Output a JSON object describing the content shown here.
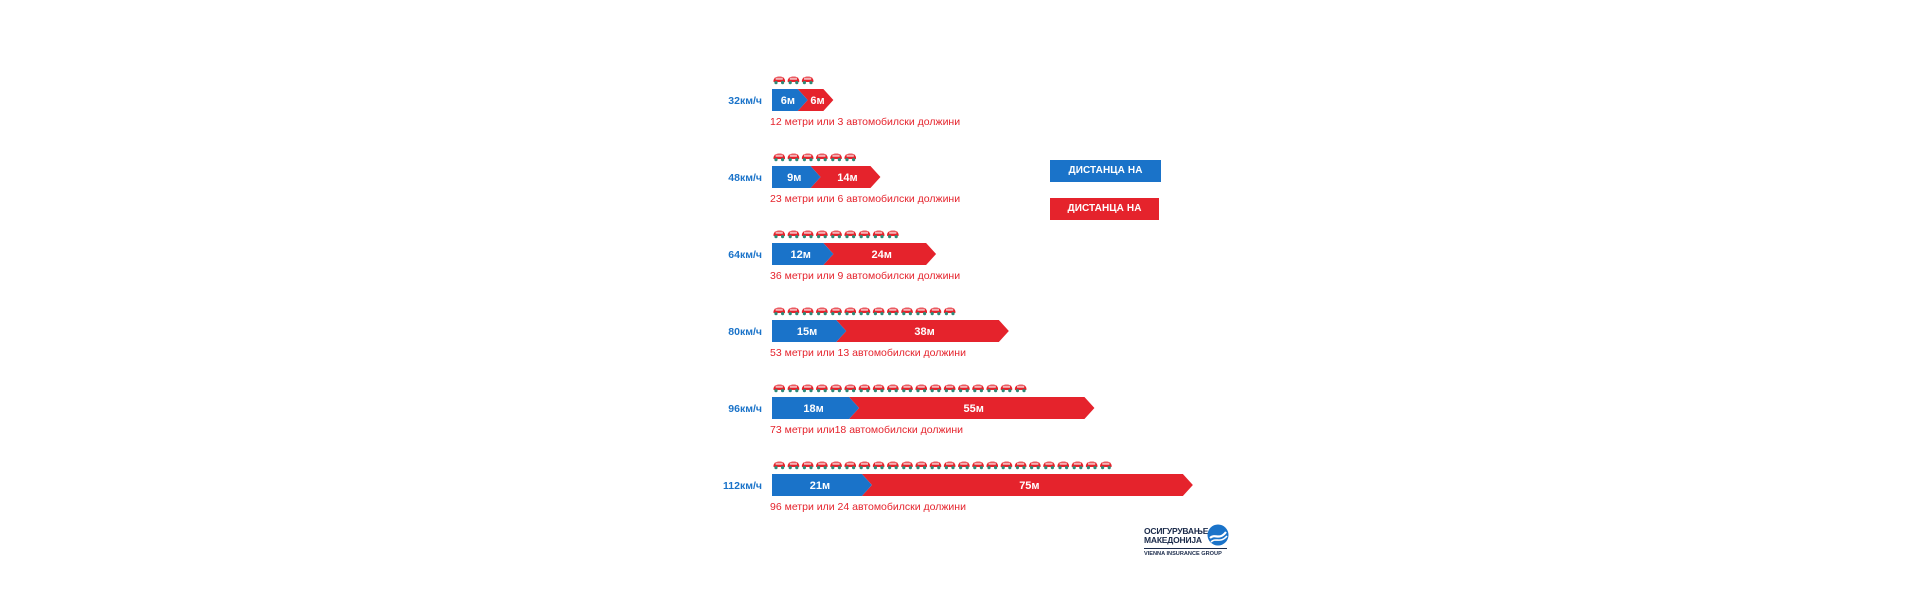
{
  "colors": {
    "thinking": "#1a73c9",
    "braking": "#e5232c",
    "car_red": "#e5232c",
    "car_teal": "#2e8a78",
    "speed_text": "#1a73c9",
    "note_text": "#e5232c"
  },
  "legend": {
    "thinking_label": "ДИСТАНЦА НА МИСЛЕЊЕ",
    "braking_label": "ДИСТАНЦА НА КОЧЕЊЕ"
  },
  "logo": {
    "line1": "ОСИГУРУВАЊЕ",
    "line2": "МАКЕДОНИЈА",
    "line3": "VIENNA INSURANCE GROUP"
  },
  "chart_data": {
    "type": "bar",
    "stacked": true,
    "orientation": "horizontal",
    "categories": [
      "32км/ч",
      "48км/ч",
      "64км/ч",
      "80км/ч",
      "96км/ч",
      "112км/ч"
    ],
    "series": [
      {
        "name": "ДИСТАНЦА НА МИСЛЕЊЕ",
        "values": [
          6,
          9,
          12,
          15,
          18,
          21
        ],
        "labels": [
          "6м",
          "9м",
          "12м",
          "15м",
          "18м",
          "21м"
        ]
      },
      {
        "name": "ДИСТАНЦА НА КОЧЕЊЕ",
        "values": [
          6,
          14,
          24,
          38,
          55,
          75
        ],
        "labels": [
          "6м",
          "14м",
          "24м",
          "38м",
          "55м",
          "75м"
        ]
      }
    ],
    "car_counts": [
      3,
      6,
      9,
      13,
      18,
      24
    ],
    "notes": [
      "12 метри или 3 автомобилски должини",
      "23 метри или 6 автомобилски должини",
      "36 метри или 9 автомобилски должини",
      "53 метри или 13 автомобилски должини",
      "73 метри или18 автомобилски должини",
      "96 метри или 24 автомобилски должини"
    ]
  }
}
